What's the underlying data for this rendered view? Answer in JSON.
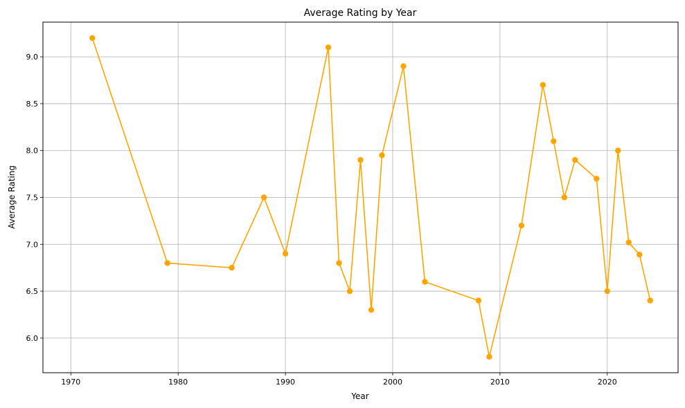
{
  "chart_data": {
    "type": "line",
    "title": "Average Rating by Year",
    "xlabel": "Year",
    "ylabel": "Average Rating",
    "xlim": [
      1967.4,
      2026.6
    ],
    "ylim": [
      5.63,
      9.37
    ],
    "xticks": [
      1970,
      1980,
      1990,
      2000,
      2010,
      2020
    ],
    "yticks": [
      6.0,
      6.5,
      7.0,
      7.5,
      8.0,
      8.5,
      9.0
    ],
    "ytick_labels": [
      "6.0",
      "6.5",
      "7.0",
      "7.5",
      "8.0",
      "8.5",
      "9.0"
    ],
    "grid": true,
    "color": "#ffa500",
    "marker": "circle",
    "series": [
      {
        "x": [
          1972,
          1979,
          1985,
          1988,
          1990,
          1994,
          1995,
          1996,
          1997,
          1998,
          1999,
          2001,
          2003,
          2008,
          2009,
          2012,
          2014,
          2015,
          2016,
          2017,
          2019,
          2020,
          2021,
          2022,
          2023,
          2024
        ],
        "y": [
          9.2,
          6.8,
          6.75,
          7.5,
          6.9,
          9.1,
          6.8,
          6.5,
          7.9,
          6.3,
          7.95,
          8.9,
          6.6,
          6.4,
          5.8,
          7.2,
          8.7,
          8.1,
          7.5,
          7.9,
          7.7,
          6.5,
          8.0,
          7.02,
          6.89,
          6.4
        ]
      }
    ]
  }
}
